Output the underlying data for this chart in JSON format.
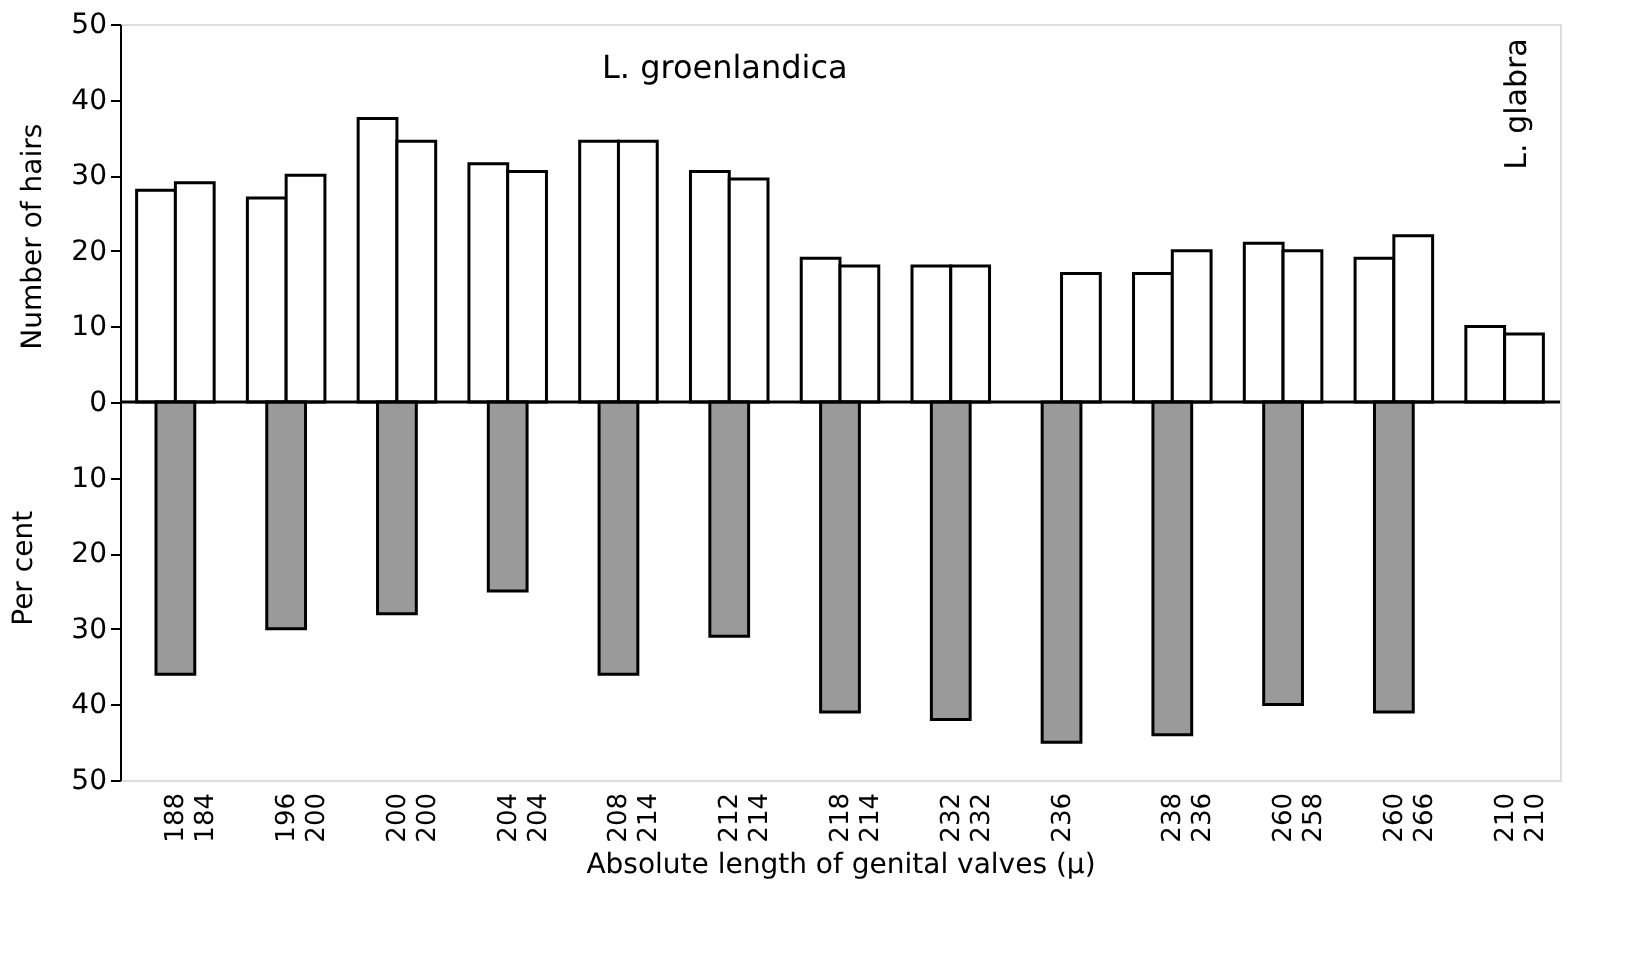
{
  "chart_data": {
    "type": "bar",
    "xlabel": "Absolute length of genital valves (μ)",
    "ylabel": "Number of hairs",
    "annotations": [
      "L. groenlandica",
      "L. glabra",
      "Per cent"
    ],
    "categories": [
      "188\n184",
      "196\n200",
      "200\n200",
      "204\n204",
      "208\n214",
      "212\n214",
      "218\n214",
      "232\n232",
      "236",
      "238\n236",
      "260\n258",
      "260\n266",
      "210\n210"
    ],
    "series": [
      {
        "color": "#ffffff",
        "values": [
          28,
          27,
          37.5,
          31.5,
          34.5,
          30.5,
          19,
          18,
          null,
          17,
          21,
          19,
          10
        ]
      },
      {
        "color": "#9a9a9a",
        "values": [
          -36,
          -30,
          -28,
          -25,
          -36,
          -31,
          -41,
          -42,
          -45,
          -44,
          -40,
          -41,
          null
        ]
      },
      {
        "color": "#ffffff",
        "values": [
          29,
          30,
          34.5,
          30.5,
          34.5,
          29.5,
          18,
          18,
          17,
          20,
          20,
          22,
          9
        ]
      }
    ],
    "ylim": [
      -50,
      50
    ],
    "yticks": [
      {
        "value": -50,
        "label": "50"
      },
      {
        "value": -40,
        "label": "40"
      },
      {
        "value": -30,
        "label": "30"
      },
      {
        "value": -20,
        "label": "20"
      },
      {
        "value": -10,
        "label": "10"
      },
      0,
      10,
      20,
      30,
      40,
      50
    ],
    "ref_lines": [
      {
        "axis": "y",
        "value": 0,
        "label": null,
        "color": "#000000"
      }
    ],
    "grid": false
  }
}
